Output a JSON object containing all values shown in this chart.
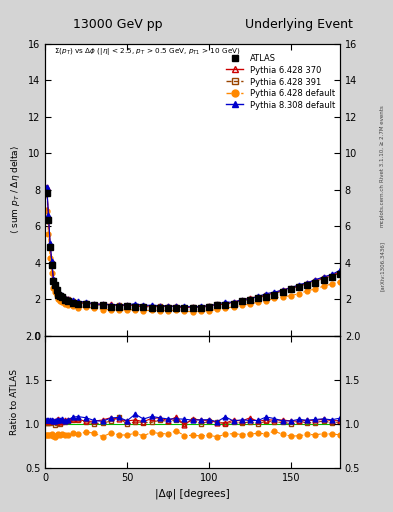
{
  "title_left": "13000 GeV pp",
  "title_right": "Underlying Event",
  "subtitle": "Σ(p_{T}) vs Δφ (|η| < 2.5, p_{T} > 0.5 GeV, p_{T1} > 10 GeV)",
  "ylabel_main": "⟨ sum p_T / Δη delta⟩",
  "ylabel_ratio": "Ratio to ATLAS",
  "xlabel": "|Δφ| [degrees]",
  "rivet_label": "Rivet 3.1.10, ≥ 2.7M events",
  "arxiv_label": "[arXiv:1306.3436]",
  "mcplots_label": "mcplots.cern.ch",
  "ylim_main": [
    0,
    16
  ],
  "ylim_ratio": [
    0.5,
    2.0
  ],
  "xlim": [
    0,
    180
  ],
  "yticks_main": [
    0,
    2,
    4,
    6,
    8,
    10,
    12,
    14,
    16
  ],
  "yticks_ratio": [
    0.5,
    1.0,
    1.5,
    2.0
  ],
  "xticks": [
    0,
    50,
    100,
    150
  ],
  "background_color": "#d4d4d4",
  "plot_bg_color": "#ffffff",
  "grid_color": "#bbbbbb"
}
